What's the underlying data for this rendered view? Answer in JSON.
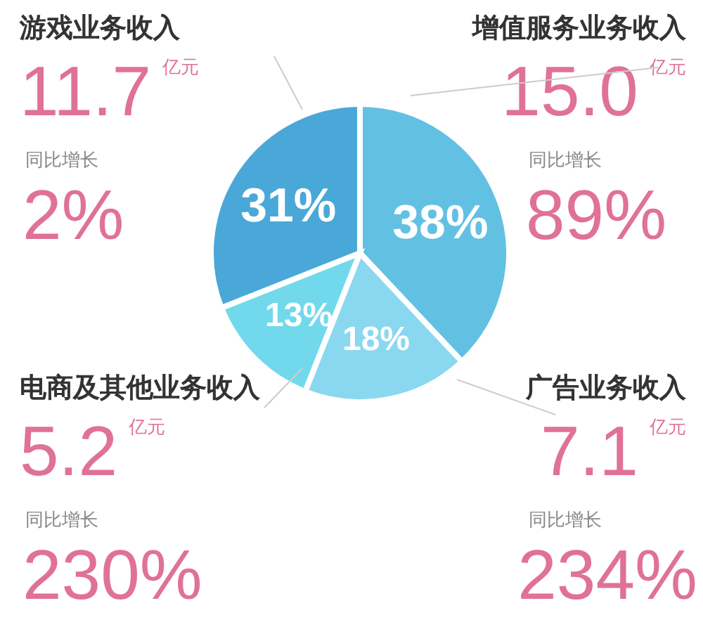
{
  "chart_data": {
    "type": "pie",
    "categories": [
      "增值服务业务收入",
      "广告业务收入",
      "电商及其他业务收入",
      "游戏业务收入"
    ],
    "values": [
      38,
      18,
      13,
      31
    ],
    "colors": [
      "#62c1e3",
      "#8ad8f0",
      "#72d9ec",
      "#4aa8d8"
    ],
    "value_labels": [
      "38%",
      "18%",
      "13%",
      "31%"
    ],
    "annotations": [
      "15.0",
      "亿元",
      "同比增长",
      "89%",
      "7.1",
      "亿元",
      "同比增长",
      "234%",
      "5.2",
      "亿元",
      "同比增长",
      "230%",
      "11.7",
      "亿元",
      "同比增长",
      "2%"
    ]
  }
}
